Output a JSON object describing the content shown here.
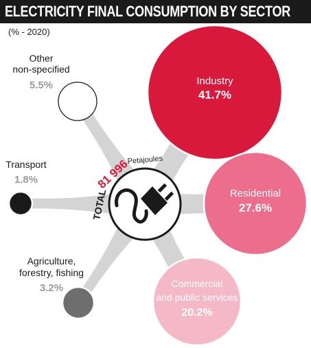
{
  "title": "ELECTRICITY FINAL CONSUMPTION BY SECTOR",
  "subtitle": "(% - 2020)",
  "total": {
    "prefix": "TOTAL",
    "value": "81 996",
    "unit": "Petajoules"
  },
  "icon": "power-plug-icon",
  "colors": {
    "title_bg": "#1a1a1a",
    "accent": "#d9193c",
    "branch": "#d4d4d4",
    "hub_stroke": "#1a1a1a",
    "value_gray": "#9a9a9a"
  },
  "chart_data": {
    "type": "pie",
    "title": "ELECTRICITY FINAL CONSUMPTION BY SECTOR",
    "subtitle": "(% - 2020)",
    "unit": "%",
    "total_label": "TOTAL 81 996 Petajoules",
    "slices": [
      {
        "label": "Industry",
        "value": 41.7,
        "display": "41.7%",
        "color": "#d9193c",
        "label_inside": true,
        "label_color": "#ffffff"
      },
      {
        "label": "Residential",
        "value": 27.6,
        "display": "27.6%",
        "color": "#ec6d8c",
        "label_inside": true,
        "label_color": "#ffffff"
      },
      {
        "label": "Commercial and public services",
        "value": 20.2,
        "display": "20.2%",
        "color": "#f5b8c7",
        "label_inside": true,
        "label_color": "#ffffff"
      },
      {
        "label": "Agriculture, forestry, fishing",
        "value": 3.2,
        "display": "3.2%",
        "color": "#6e6e6e",
        "label_inside": false
      },
      {
        "label": "Transport",
        "value": 1.8,
        "display": "1.8%",
        "color": "#1a1a1a",
        "label_inside": false
      },
      {
        "label": "Other non-specified",
        "value": 5.5,
        "display": "5.5%",
        "color": "#ffffff",
        "label_inside": false
      }
    ]
  }
}
